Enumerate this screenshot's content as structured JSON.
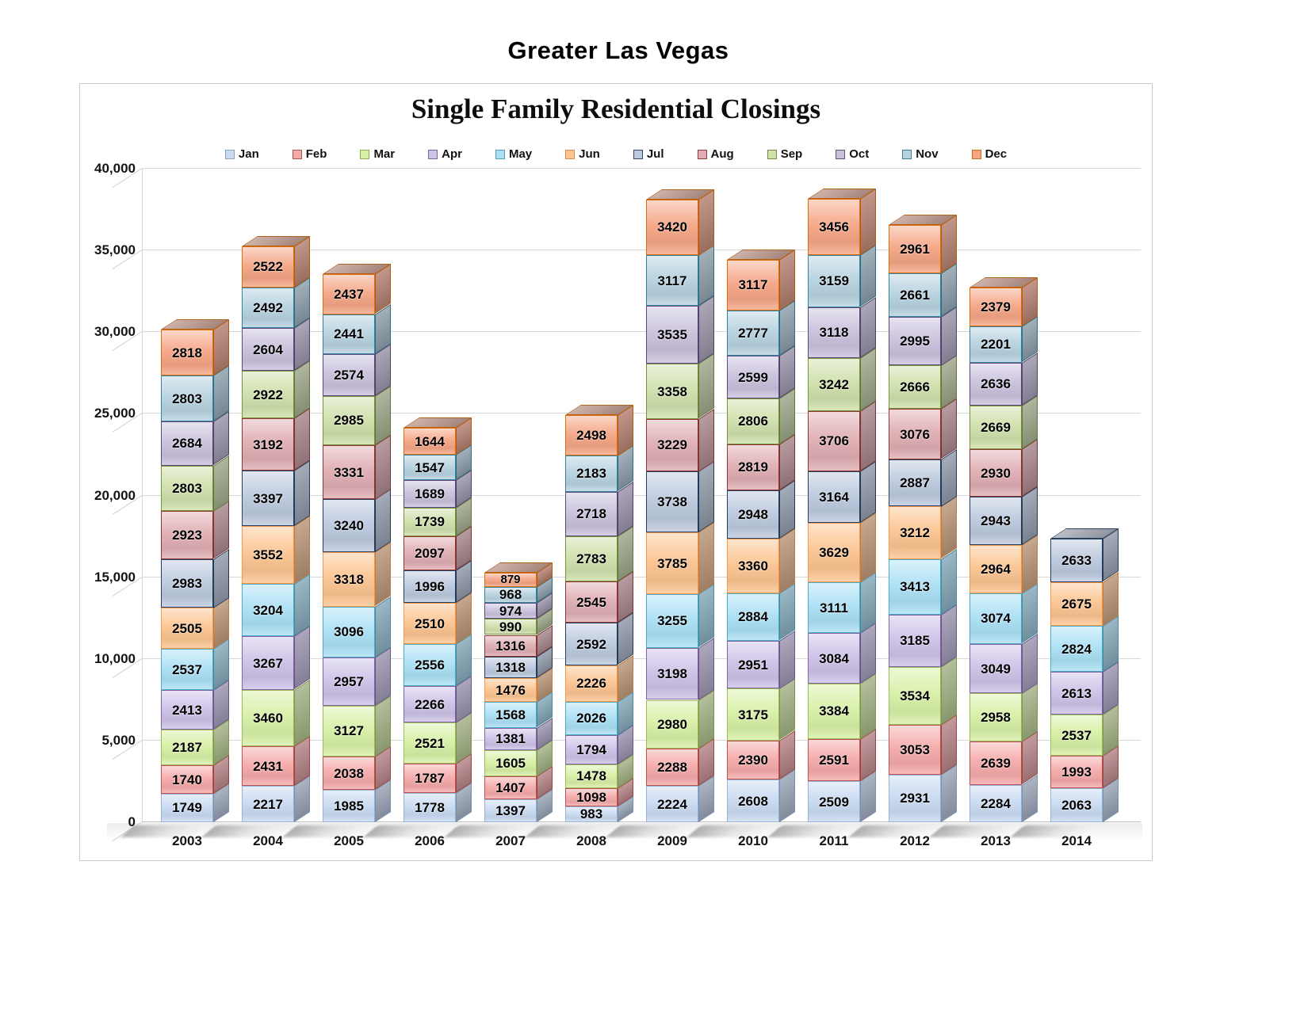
{
  "page_title": "Greater Las Vegas",
  "chart_data": {
    "type": "bar",
    "stacked": true,
    "threeD": true,
    "title": "Single Family Residential Closings",
    "xlabel": "",
    "ylabel": "",
    "categories": [
      "2003",
      "2004",
      "2005",
      "2006",
      "2007",
      "2008",
      "2009",
      "2010",
      "2011",
      "2012",
      "2013",
      "2014"
    ],
    "ylim": [
      0,
      40000
    ],
    "ytick_interval": 5000,
    "ytick_labels": [
      "0",
      "5,000",
      "10,000",
      "15,000",
      "20,000",
      "25,000",
      "30,000",
      "35,000",
      "40,000"
    ],
    "grid": true,
    "legend_position": "top",
    "series": [
      {
        "name": "Jan",
        "fill": "#c9daf1",
        "border": "#95b3d7",
        "values": [
          1749,
          2217,
          1985,
          1778,
          1397,
          983,
          2224,
          2608,
          2509,
          2931,
          2284,
          2063
        ]
      },
      {
        "name": "Feb",
        "fill": "#f5a9a9",
        "border": "#c0504d",
        "values": [
          1740,
          2431,
          2038,
          1787,
          1407,
          1098,
          2288,
          2390,
          2591,
          3053,
          2639,
          1993
        ]
      },
      {
        "name": "Mar",
        "fill": "#d7f0a5",
        "border": "#9bbb59",
        "values": [
          2187,
          3460,
          3127,
          2521,
          1605,
          1478,
          2980,
          3175,
          3384,
          3534,
          2958,
          2537
        ]
      },
      {
        "name": "Apr",
        "fill": "#cdc2e8",
        "border": "#8064a2",
        "values": [
          2413,
          3267,
          2957,
          2266,
          1381,
          1794,
          3198,
          2951,
          3084,
          3185,
          3049,
          2613
        ]
      },
      {
        "name": "May",
        "fill": "#abe0f5",
        "border": "#4bacc6",
        "values": [
          2537,
          3204,
          3096,
          2556,
          1568,
          2026,
          3255,
          2884,
          3111,
          3413,
          3074,
          2824
        ]
      },
      {
        "name": "Jun",
        "fill": "#fcc490",
        "border": "#f79646",
        "values": [
          2505,
          3552,
          3318,
          2510,
          1476,
          2226,
          3785,
          3360,
          3629,
          3212,
          2964,
          2675
        ]
      },
      {
        "name": "Jul",
        "fill": "#bcc9de",
        "border": "#254061",
        "values": [
          2983,
          3397,
          3240,
          1996,
          1318,
          2592,
          3738,
          2948,
          3164,
          2887,
          2943,
          2633
        ]
      },
      {
        "name": "Aug",
        "fill": "#dfadb2",
        "border": "#943634",
        "values": [
          2923,
          3192,
          3331,
          2097,
          1316,
          2545,
          3229,
          2819,
          3706,
          3076,
          2930,
          null
        ]
      },
      {
        "name": "Sep",
        "fill": "#cfe0ab",
        "border": "#76923c",
        "values": [
          2803,
          2922,
          2985,
          1739,
          990,
          2783,
          3358,
          2806,
          3242,
          2666,
          2669,
          null
        ]
      },
      {
        "name": "Oct",
        "fill": "#c9c1dc",
        "border": "#5f497a",
        "values": [
          2684,
          2604,
          2574,
          1689,
          974,
          2718,
          3535,
          2599,
          3118,
          2995,
          2636,
          null
        ]
      },
      {
        "name": "Nov",
        "fill": "#b7d2e0",
        "border": "#31859c",
        "values": [
          2803,
          2492,
          2441,
          1547,
          968,
          2183,
          3117,
          2777,
          3159,
          2661,
          2201,
          null
        ]
      },
      {
        "name": "Dec",
        "fill": "#f5a585",
        "border": "#e36c0a",
        "values": [
          2818,
          2522,
          2437,
          1644,
          879,
          2498,
          3420,
          3117,
          3456,
          2961,
          2379,
          null
        ]
      }
    ]
  }
}
